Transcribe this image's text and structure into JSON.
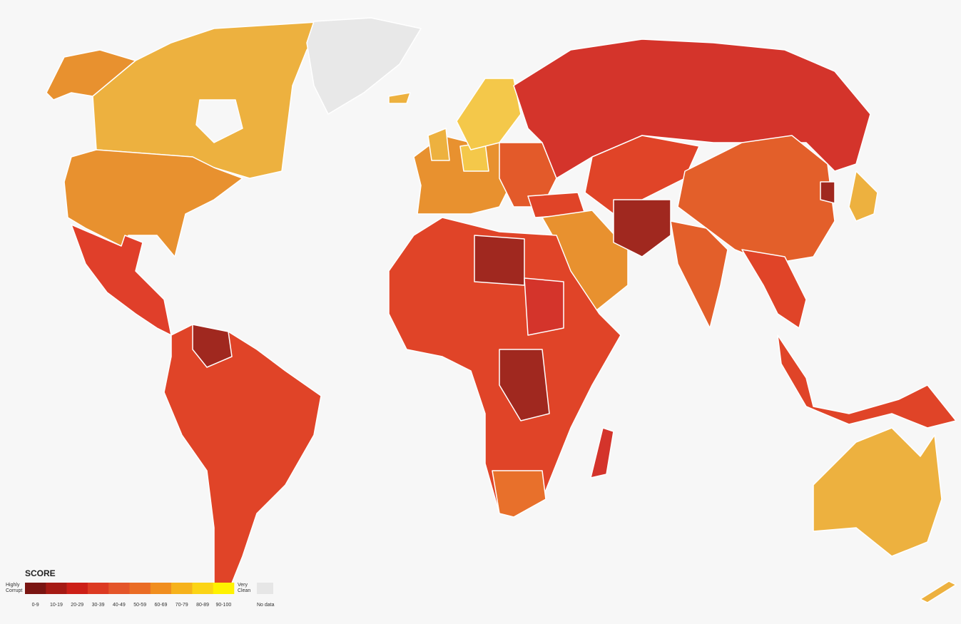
{
  "legend": {
    "title": "SCORE",
    "low_label": "Highly Corrupt",
    "high_label": "Very Clean",
    "bins": [
      "0-9",
      "10-19",
      "20-29",
      "30-39",
      "40-49",
      "50-59",
      "60-69",
      "70-79",
      "80-89",
      "90-100"
    ],
    "colors": [
      "#7a1512",
      "#a51a14",
      "#cc1f17",
      "#dc3a22",
      "#e4552a",
      "#ea6c25",
      "#f08e1f",
      "#f6b21c",
      "#fbd416",
      "#fff200"
    ],
    "no_data": "No data",
    "no_data_color": "#e6e6e6"
  }
}
